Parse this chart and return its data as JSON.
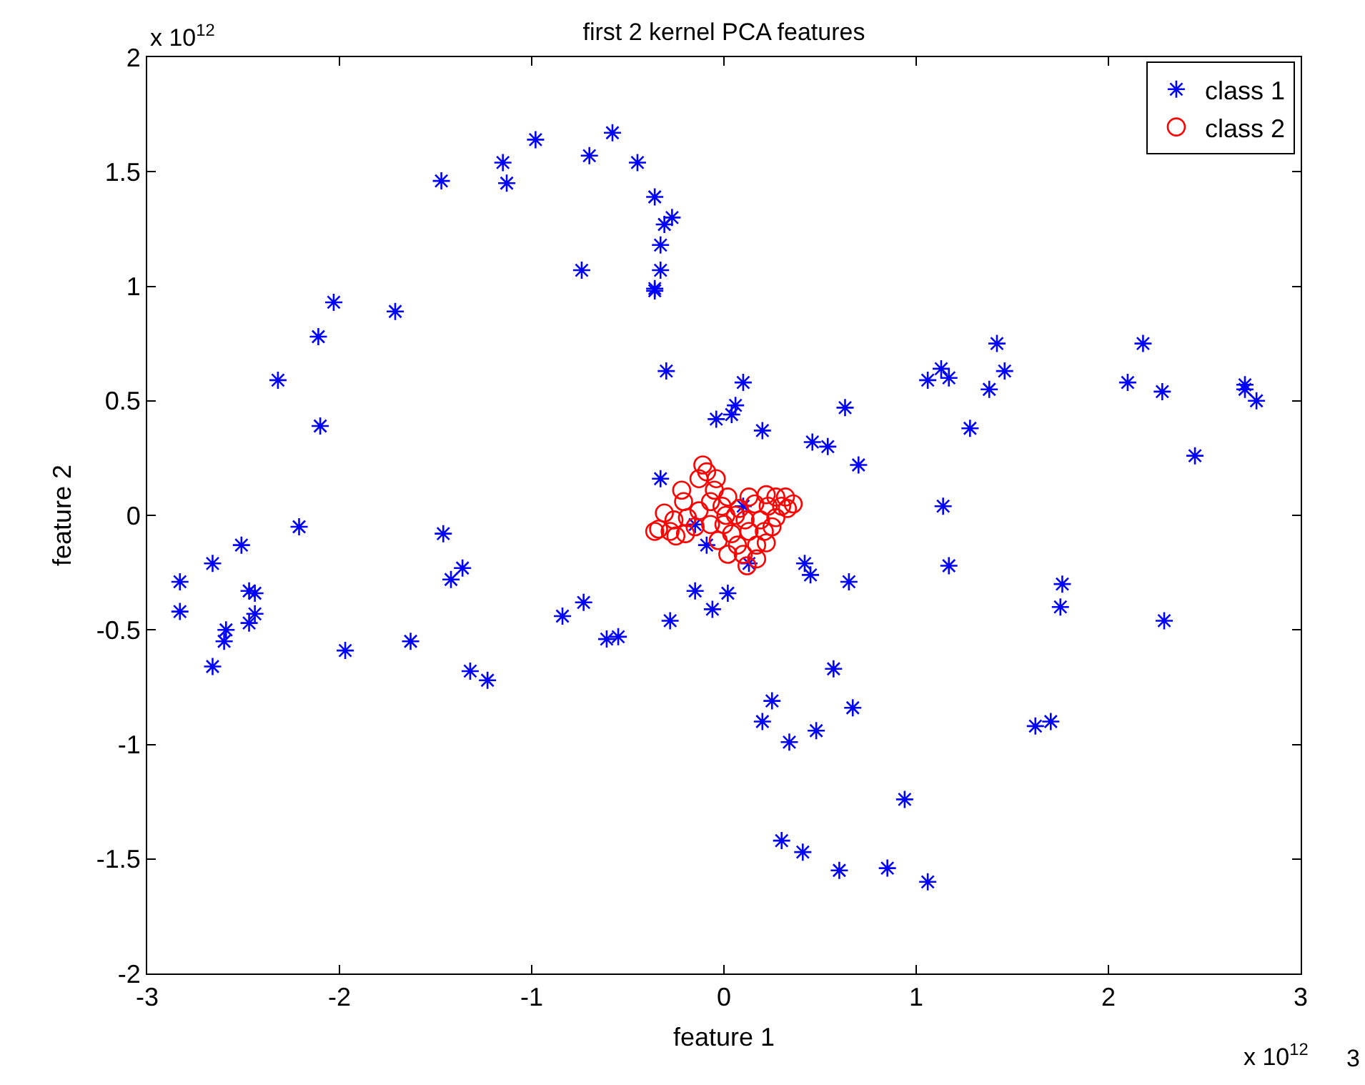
{
  "chart_data": {
    "type": "scatter",
    "title": "first 2 kernel PCA features",
    "xlabel": "feature 1",
    "ylabel": "feature 2",
    "annotations": [
      "x 10$^{12}$",
      "x 10$^{12}$",
      "3"
    ],
    "xlim": [
      -3,
      3
    ],
    "xticks": [
      -3,
      -2,
      -1,
      0,
      1,
      2,
      3
    ],
    "ylim": [
      -2,
      2
    ],
    "yticks": [
      -2,
      -1.5,
      -1,
      -0.5,
      0,
      0.5,
      1,
      1.5,
      2
    ],
    "grid": false,
    "legend": "top right",
    "series": [
      {
        "name": "class 1",
        "color": "#0000ff",
        "marker": "cross",
        "x": [
          -1.47,
          -1.15,
          -1.13,
          -0.98,
          -0.7,
          -0.58,
          -0.45,
          -0.36,
          -0.31,
          -0.27,
          -0.33,
          -0.33,
          -0.36,
          -0.36,
          -0.74,
          -0.3,
          -2.03,
          -2.11,
          -1.71,
          -2.32,
          -2.1,
          -2.83,
          -2.83,
          -2.66,
          -2.51,
          -2.66,
          -2.6,
          -2.59,
          -2.47,
          -2.44,
          -2.47,
          -2.44,
          -2.21,
          -1.97,
          -1.63,
          -1.46,
          -1.42,
          -1.36,
          -1.32,
          -1.23,
          -0.84,
          -0.73,
          -0.61,
          -0.55,
          -0.33,
          -0.28,
          -0.15,
          -0.09,
          -0.06,
          0.02,
          -0.04,
          0.04,
          0.06,
          0.1,
          0.2,
          0.1,
          -0.15,
          0.13,
          0.46,
          0.54,
          0.63,
          0.7,
          1.06,
          1.13,
          1.17,
          1.42,
          1.46,
          1.38,
          1.28,
          1.14,
          1.17,
          2.18,
          2.1,
          2.28,
          2.71,
          2.71,
          2.77,
          2.45,
          1.76,
          1.75,
          2.29,
          0.42,
          0.45,
          0.65,
          0.57,
          0.25,
          0.2,
          0.34,
          0.48,
          0.67,
          1.62,
          1.7,
          0.94,
          0.3,
          0.41,
          0.6,
          0.85,
          1.06
        ],
        "values": [
          1.46,
          1.54,
          1.45,
          1.64,
          1.57,
          1.67,
          1.54,
          1.39,
          1.27,
          1.3,
          1.18,
          1.07,
          0.99,
          0.98,
          1.07,
          0.63,
          0.93,
          0.78,
          0.89,
          0.59,
          0.39,
          -0.29,
          -0.42,
          -0.21,
          -0.13,
          -0.66,
          -0.55,
          -0.5,
          -0.33,
          -0.34,
          -0.47,
          -0.43,
          -0.05,
          -0.59,
          -0.55,
          -0.08,
          -0.28,
          -0.23,
          -0.68,
          -0.72,
          -0.44,
          -0.38,
          -0.54,
          -0.53,
          0.16,
          -0.46,
          -0.33,
          -0.13,
          -0.41,
          -0.34,
          0.42,
          0.44,
          0.48,
          0.58,
          0.37,
          0.04,
          -0.04,
          -0.21,
          0.32,
          0.3,
          0.47,
          0.22,
          0.59,
          0.64,
          0.6,
          0.75,
          0.63,
          0.55,
          0.38,
          0.04,
          -0.22,
          0.75,
          0.58,
          0.54,
          0.57,
          0.55,
          0.5,
          0.26,
          -0.3,
          -0.4,
          -0.46,
          -0.21,
          -0.26,
          -0.29,
          -0.67,
          -0.81,
          -0.9,
          -0.99,
          -0.94,
          -0.84,
          -0.92,
          -0.9,
          -1.24,
          -1.42,
          -1.47,
          -1.55,
          -1.54,
          -1.6
        ]
      },
      {
        "name": "class 2",
        "color": "#ff0000",
        "marker": "circle",
        "x": [
          -0.11,
          -0.09,
          -0.04,
          -0.22,
          -0.21,
          -0.31,
          -0.36,
          -0.34,
          -0.25,
          -0.2,
          -0.13,
          -0.07,
          -0.01,
          0.02,
          0.06,
          0.0,
          0.04,
          0.07,
          0.1,
          0.12,
          0.17,
          0.22,
          0.25,
          0.27,
          0.19,
          0.16,
          0.22,
          0.27,
          0.32,
          0.36,
          0.33,
          0.3,
          0.13,
          0.04,
          -0.03,
          -0.07,
          -0.15,
          -0.28,
          0.01,
          0.21,
          0.17,
          0.08,
          -0.05,
          -0.13,
          -0.19,
          -0.26,
          0.02,
          0.23,
          0.13,
          0.11
        ],
        "values": [
          0.22,
          0.19,
          0.16,
          0.11,
          0.06,
          0.01,
          -0.07,
          -0.06,
          -0.09,
          -0.08,
          0.02,
          0.06,
          0.04,
          0.08,
          0.0,
          -0.04,
          -0.08,
          -0.13,
          -0.17,
          -0.22,
          -0.19,
          -0.12,
          -0.05,
          -0.01,
          -0.02,
          0.05,
          0.09,
          0.08,
          0.08,
          0.05,
          0.03,
          0.04,
          0.08,
          null,
          -0.11,
          -0.04,
          -0.05,
          -0.07,
          0.0,
          -0.07,
          -0.13,
          0.03,
          0.11,
          0.16,
          -0.01,
          -0.02,
          -0.17,
          0.04,
          -0.07,
          -0.02
        ]
      }
    ]
  }
}
